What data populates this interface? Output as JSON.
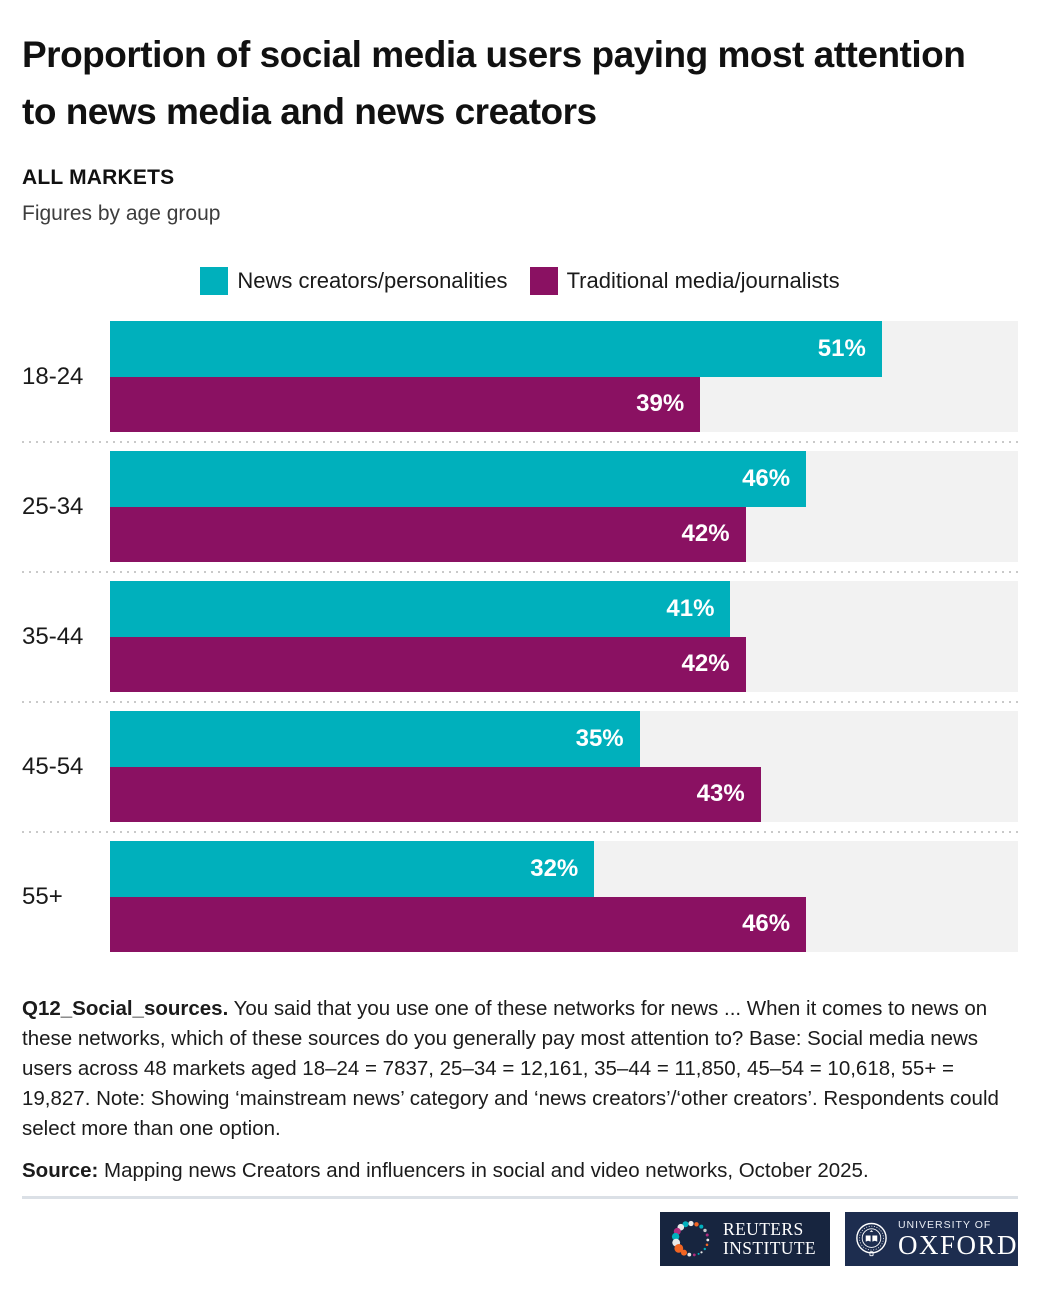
{
  "header": {
    "title": "Proportion of social media users paying most attention to news media and news creators",
    "kicker": "ALL MARKETS",
    "subtitle": "Figures by age group"
  },
  "legend": {
    "items": [
      {
        "label": "News creators/personalities",
        "color": "#00b0bc"
      },
      {
        "label": "Traditional media/journalists",
        "color": "#8a1162"
      }
    ]
  },
  "chart_data": {
    "type": "bar",
    "orientation": "horizontal",
    "title": "Proportion of social media users paying most attention to news media and news creators",
    "subtitle": "ALL MARKETS — Figures by age group",
    "categories": [
      "18-24",
      "25-34",
      "35-44",
      "45-54",
      "55+"
    ],
    "series": [
      {
        "name": "News creators/personalities",
        "color": "#00b0bc",
        "values": [
          51,
          46,
          41,
          35,
          32
        ]
      },
      {
        "name": "Traditional media/journalists",
        "color": "#8a1162",
        "values": [
          39,
          42,
          42,
          43,
          46
        ]
      }
    ],
    "value_suffix": "%",
    "xlim": [
      0,
      60
    ],
    "grid": false,
    "legend_position": "top-center",
    "track_color": "#f2f2f2"
  },
  "footnote": {
    "lead": "Q12_Social_sources.",
    "text": " You said that you use one of these networks for news ... When it comes to news on these networks, which of these sources do you generally pay most attention to? Base: Social media news users across 48 markets aged 18–24 = 7837, 25–34 = 12,161, 35–44 = 11,850, 45–54 = 10,618, 55+ = 19,827. Note: Showing ‘mainstream news’ category and ‘news creators’/‘other creators’. Respondents could select more than one option."
  },
  "source": {
    "lead": "Source:",
    "text": " Mapping news Creators and influencers in social and video networks, October 2025."
  },
  "logos": {
    "reuters": {
      "line1": "REUTERS",
      "line2": "INSTITUTE"
    },
    "oxford": {
      "line1": "UNIVERSITY OF",
      "line2": "OXFORD"
    }
  }
}
